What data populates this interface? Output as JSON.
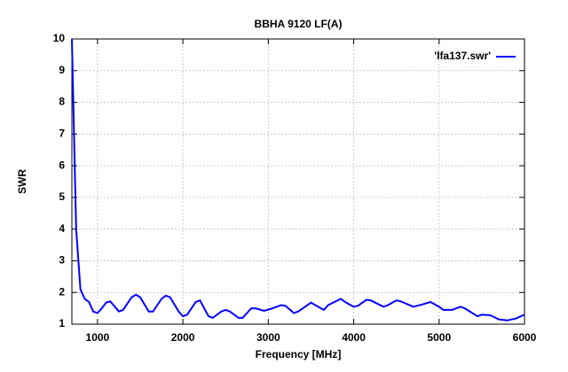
{
  "chart_data": {
    "type": "line",
    "title": "BBHA 9120 LF(A)",
    "x_label": "Frequency [MHz]",
    "y_label": "SWR",
    "x": [
      700,
      750,
      800,
      850,
      900,
      950,
      1000,
      1050,
      1100,
      1150,
      1250,
      1300,
      1400,
      1450,
      1500,
      1600,
      1650,
      1750,
      1800,
      1850,
      1950,
      2000,
      2050,
      2150,
      2200,
      2300,
      2350,
      2450,
      2500,
      2550,
      2650,
      2700,
      2800,
      2850,
      2950,
      3050,
      3150,
      3200,
      3300,
      3350,
      3500,
      3550,
      3650,
      3700,
      3850,
      3900,
      4000,
      4050,
      4150,
      4200,
      4350,
      4400,
      4500,
      4550,
      4700,
      4800,
      4900,
      5000,
      5050,
      5150,
      5250,
      5300,
      5450,
      5500,
      5600,
      5700,
      5800,
      5900,
      6000
    ],
    "series": [
      {
        "name": "'lfa137.swr'",
        "color": "#0000ff",
        "values": [
          10,
          4,
          2.1,
          1.8,
          1.7,
          1.4,
          1.35,
          1.5,
          1.68,
          1.72,
          1.4,
          1.45,
          1.85,
          1.93,
          1.85,
          1.4,
          1.4,
          1.8,
          1.9,
          1.85,
          1.4,
          1.25,
          1.3,
          1.7,
          1.75,
          1.25,
          1.2,
          1.4,
          1.45,
          1.4,
          1.2,
          1.2,
          1.5,
          1.5,
          1.42,
          1.5,
          1.6,
          1.58,
          1.35,
          1.4,
          1.68,
          1.6,
          1.45,
          1.6,
          1.8,
          1.7,
          1.55,
          1.58,
          1.77,
          1.75,
          1.55,
          1.6,
          1.75,
          1.72,
          1.55,
          1.62,
          1.7,
          1.55,
          1.45,
          1.45,
          1.55,
          1.5,
          1.25,
          1.3,
          1.28,
          1.15,
          1.12,
          1.18,
          1.3
        ]
      }
    ],
    "xlim": [
      700,
      6000
    ],
    "ylim": [
      1,
      10
    ],
    "xticks": [
      1000,
      2000,
      3000,
      4000,
      5000,
      6000
    ],
    "yticks": [
      1,
      2,
      3,
      4,
      5,
      6,
      7,
      8,
      9,
      10
    ],
    "grid": true,
    "legend": "top-right"
  }
}
